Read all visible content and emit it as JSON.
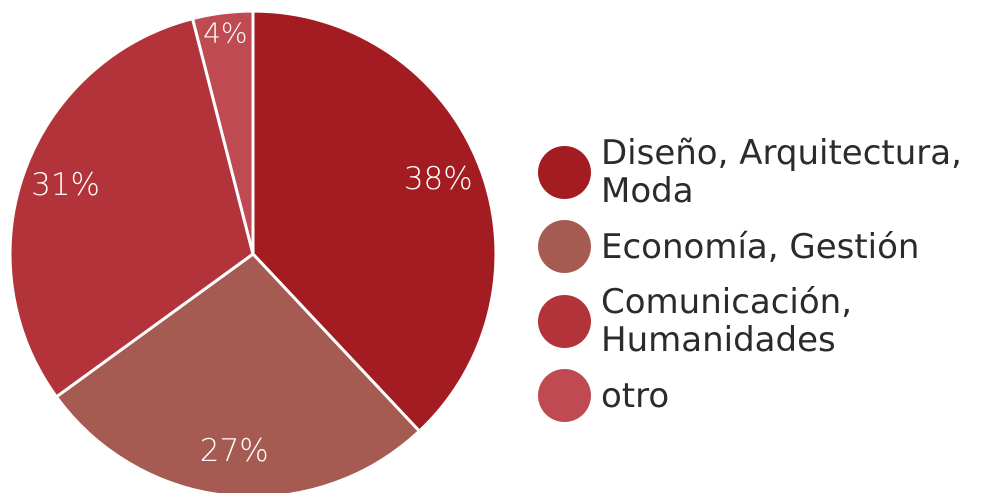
{
  "chart_data": {
    "type": "pie",
    "slices": [
      {
        "label": "Diseño, Arquitectura,\nModa",
        "value": 38,
        "value_label": "38%",
        "color": "#a31c22"
      },
      {
        "label": "Economía, Gestión",
        "value": 27,
        "value_label": "27%",
        "color": "#a55a52"
      },
      {
        "label": "Comunicación,\nHumanidades",
        "value": 31,
        "value_label": "31%",
        "color": "#b2343a"
      },
      {
        "label": "otro",
        "value": 4,
        "value_label": "4%",
        "color": "#bf4a52"
      }
    ],
    "legend_position": "right"
  }
}
